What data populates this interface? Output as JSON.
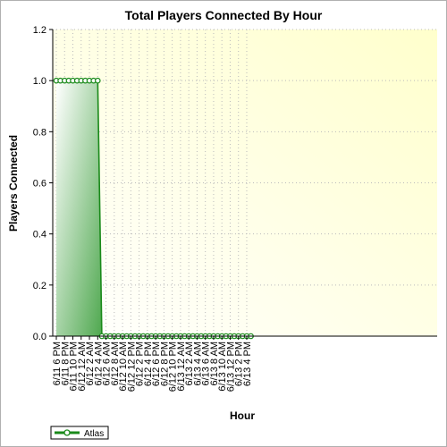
{
  "chart_data": {
    "type": "area",
    "title": "Total Players Connected By Hour",
    "xlabel": "Hour",
    "ylabel": "Players Connected",
    "ylim": [
      0,
      1.2
    ],
    "yticks": [
      "0.0",
      "0.2",
      "0.4",
      "0.6",
      "0.8",
      "1.0",
      "1.2"
    ],
    "xticks": [
      "6/11 6 PM",
      "6/11 8 PM",
      "6/11 10 PM",
      "6/12 12 AM",
      "6/12 2 AM",
      "6/12 4 AM",
      "6/12 6 AM",
      "6/12 8 AM",
      "6/12 10 AM",
      "6/12 12 PM",
      "6/12 2 PM",
      "6/12 4 PM",
      "6/12 6 PM",
      "6/12 8 PM",
      "6/12 10 PM",
      "6/13 12 AM",
      "6/13 2 AM",
      "6/13 4 AM",
      "6/13 6 AM",
      "6/13 8 AM",
      "6/13 10 AM",
      "6/13 12 PM",
      "6/13 2 PM",
      "6/13 4 PM"
    ],
    "grid": true,
    "legend_position": "bottom-left",
    "series": [
      {
        "name": "Atlas",
        "color": "#1a8a1a",
        "x_hours_from_start": [
          0,
          1,
          2,
          3,
          4,
          5,
          6,
          7,
          8,
          9,
          10,
          11,
          12,
          13,
          14,
          15,
          16,
          17,
          18,
          19,
          20,
          21,
          22,
          23,
          24,
          25,
          26,
          27,
          28,
          29,
          30,
          31,
          32,
          33,
          34,
          35,
          36,
          37,
          38,
          39,
          40,
          41,
          42,
          43,
          44,
          45,
          46,
          47
        ],
        "values": [
          1,
          1,
          1,
          1,
          1,
          1,
          1,
          1,
          1,
          1,
          1,
          0,
          0,
          0,
          0,
          0,
          0,
          0,
          0,
          0,
          0,
          0,
          0,
          0,
          0,
          0,
          0,
          0,
          0,
          0,
          0,
          0,
          0,
          0,
          0,
          0,
          0,
          0,
          0,
          0,
          0,
          0,
          0,
          0,
          0,
          0,
          0,
          0
        ]
      }
    ]
  }
}
